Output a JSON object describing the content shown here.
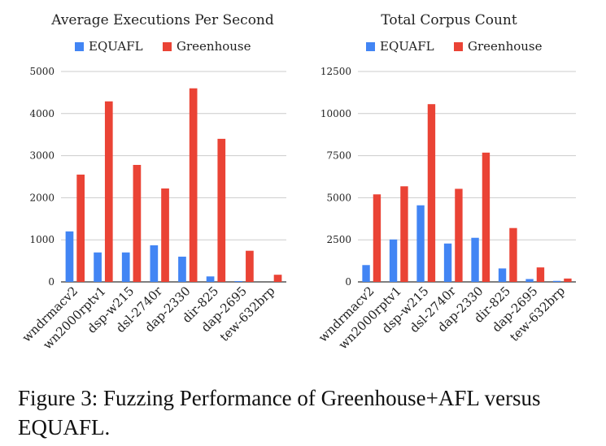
{
  "colors": {
    "equafl": "#4285f4",
    "greenhouse": "#ea4335",
    "grid": "#cccccc",
    "axis": "#333333"
  },
  "legend": {
    "series_a": "EQUAFL",
    "series_b": "Greenhouse"
  },
  "caption": "Figure 3: Fuzzing Performance of Greenhouse+AFL versus EQUAFL.",
  "chart_data": [
    {
      "type": "bar",
      "title": "Average Executions Per Second",
      "categories": [
        "wndrmacv2",
        "wn2000rptv1",
        "dsp-w215",
        "dsl-2740r",
        "dap-2330",
        "dir-825",
        "dap-2695",
        "tew-632brp"
      ],
      "series": [
        {
          "name": "EQUAFL",
          "values": [
            1200,
            700,
            700,
            870,
            600,
            130,
            20,
            0
          ]
        },
        {
          "name": "Greenhouse",
          "values": [
            2550,
            4290,
            2780,
            2220,
            4600,
            3400,
            740,
            170
          ]
        }
      ],
      "ylim": [
        0,
        5000
      ],
      "yticks": [
        "0",
        "1000",
        "2000",
        "3000",
        "4000",
        "5000"
      ],
      "grid": true,
      "legend_position": "top"
    },
    {
      "type": "bar",
      "title": "Total Corpus Count",
      "categories": [
        "wndrmacv2",
        "wn2000rptv1",
        "dsp-w215",
        "dsl-2740r",
        "dap-2330",
        "dir-825",
        "dap-2695",
        "tew-632brp"
      ],
      "series": [
        {
          "name": "EQUAFL",
          "values": [
            1000,
            2520,
            4550,
            2280,
            2620,
            800,
            170,
            60
          ]
        },
        {
          "name": "Greenhouse",
          "values": [
            5200,
            5680,
            10560,
            5530,
            7680,
            3200,
            860,
            200
          ]
        }
      ],
      "ylim": [
        0,
        12500
      ],
      "yticks": [
        "0",
        "2500",
        "5000",
        "7500",
        "10000",
        "12500"
      ],
      "grid": true,
      "legend_position": "top"
    }
  ]
}
